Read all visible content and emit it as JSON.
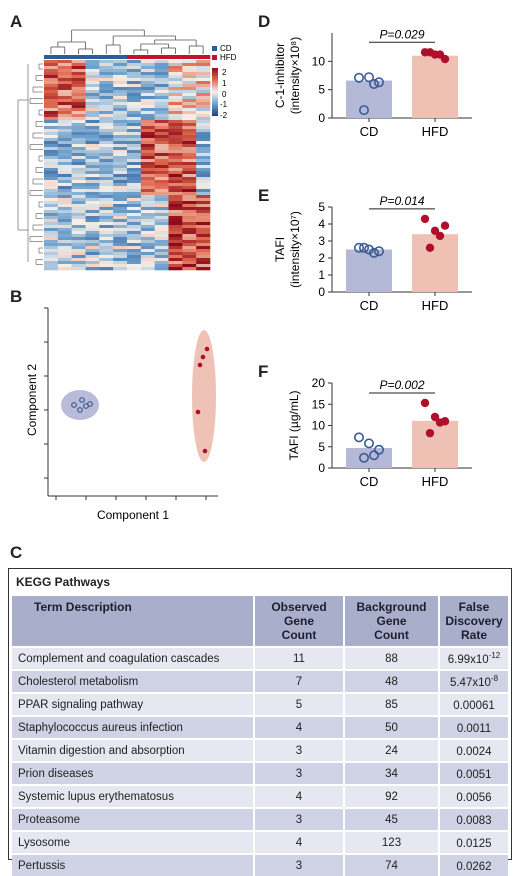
{
  "panels": {
    "a": "A",
    "b": "B",
    "c": "C",
    "d": "D",
    "e": "E",
    "f": "F"
  },
  "heatmap": {
    "legend_groups": [
      {
        "label": "CD",
        "color": "#2a5d9a"
      },
      {
        "label": "HFD",
        "color": "#c0142e"
      }
    ],
    "colorbar_ticks": [
      "2",
      "1",
      "0",
      "-1",
      "-2"
    ]
  },
  "pca": {
    "xlabel": "Component 1",
    "ylabel": "Component 2"
  },
  "chart_data": [
    {
      "id": "D",
      "type": "bar",
      "categories": [
        "CD",
        "HFD"
      ],
      "values": [
        6.6,
        11.0
      ],
      "points": [
        [
          7.1,
          7.2,
          6.3,
          6.0,
          1.4
        ],
        [
          11.6,
          11.2,
          10.4,
          11.2,
          11.6
        ]
      ],
      "ylabel_line1": "C-1-inhibitor",
      "ylabel_line2": "(intensity×10⁸)",
      "ylim": [
        0,
        15
      ],
      "ticks": [
        "0",
        "5",
        "10"
      ],
      "pvalue": "P=0.029",
      "colors": [
        "#b4b9d8",
        "#eec1b4"
      ],
      "marker_colors": [
        "#3c5b94",
        "#b00f2c"
      ]
    },
    {
      "id": "E",
      "type": "bar",
      "categories": [
        "CD",
        "HFD"
      ],
      "values": [
        2.5,
        3.4
      ],
      "points": [
        [
          2.6,
          2.5,
          2.4,
          2.3,
          2.6
        ],
        [
          4.3,
          3.6,
          3.9,
          3.3,
          2.6
        ]
      ],
      "ylabel_line1": "TAFI",
      "ylabel_line2": "(intensity×10⁷)",
      "ylim": [
        0,
        5
      ],
      "ticks": [
        "0",
        "1",
        "2",
        "3",
        "4",
        "5"
      ],
      "pvalue": "P=0.014",
      "colors": [
        "#b4b9d8",
        "#eec1b4"
      ],
      "marker_colors": [
        "#3c5b94",
        "#b00f2c"
      ]
    },
    {
      "id": "F",
      "type": "bar",
      "categories": [
        "CD",
        "HFD"
      ],
      "values": [
        4.7,
        11.1
      ],
      "points": [
        [
          7.2,
          5.8,
          4.3,
          3.0,
          2.4
        ],
        [
          15.3,
          12.0,
          11.0,
          10.7,
          8.2
        ]
      ],
      "ylabel_line1": "TAFI (µg/mL)",
      "ylabel_line2": "",
      "ylim": [
        0,
        20
      ],
      "ticks": [
        "0",
        "5",
        "10",
        "15",
        "20"
      ],
      "pvalue": "P=0.002",
      "colors": [
        "#b4b9d8",
        "#eec1b4"
      ],
      "marker_colors": [
        "#3c5b94",
        "#b00f2c"
      ]
    }
  ],
  "kegg": {
    "title": "KEGG Pathways",
    "headers": {
      "term": "Term Description",
      "observed": [
        "Observed",
        "Gene",
        "Count"
      ],
      "background": [
        "Background",
        "Gene",
        "Count"
      ],
      "fdr": [
        "False Discovery",
        "Rate"
      ]
    },
    "rows": [
      {
        "term": "Complement and coagulation cascades",
        "observed": "11",
        "background": "88",
        "fdr_base": "6.99x10",
        "fdr_exp": "-12"
      },
      {
        "term": "Cholesterol metabolism",
        "observed": "7",
        "background": "48",
        "fdr_base": "5.47x10",
        "fdr_exp": "-8"
      },
      {
        "term": "PPAR signaling pathway",
        "observed": "5",
        "background": "85",
        "fdr_base": "0.00061",
        "fdr_exp": ""
      },
      {
        "term": "Staphylococcus aureus infection",
        "observed": "4",
        "background": "50",
        "fdr_base": "0.0011",
        "fdr_exp": ""
      },
      {
        "term": "Vitamin digestion and absorption",
        "observed": "3",
        "background": "24",
        "fdr_base": "0.0024",
        "fdr_exp": ""
      },
      {
        "term": "Prion diseases",
        "observed": "3",
        "background": "34",
        "fdr_base": "0.0051",
        "fdr_exp": ""
      },
      {
        "term": "Systemic lupus erythematosus",
        "observed": "4",
        "background": "92",
        "fdr_base": "0.0056",
        "fdr_exp": ""
      },
      {
        "term": "Proteasome",
        "observed": "3",
        "background": "45",
        "fdr_base": "0.0083",
        "fdr_exp": ""
      },
      {
        "term": "Lysosome",
        "observed": "4",
        "background": "123",
        "fdr_base": "0.0125",
        "fdr_exp": ""
      },
      {
        "term": "Pertussis",
        "observed": "3",
        "background": "74",
        "fdr_base": "0.0262",
        "fdr_exp": ""
      }
    ]
  }
}
